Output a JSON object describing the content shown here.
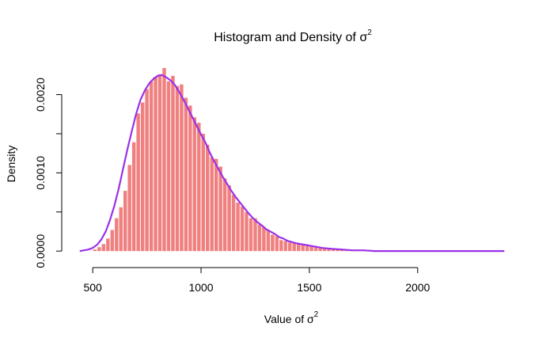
{
  "chart_data": {
    "type": "bar",
    "title": "Histogram and Density of σ",
    "title_superscript": "2",
    "xlabel": "Value of σ",
    "xlabel_superscript": "2",
    "ylabel": "Density",
    "xlim": [
      430,
      2410
    ],
    "ylim": [
      -0.00013,
      0.0024
    ],
    "x_ticks": [
      500,
      1000,
      1500,
      2000
    ],
    "x_tick_labels": [
      "500",
      "1000",
      "1500",
      "2000"
    ],
    "y_ticks": [
      0.0,
      0.0005,
      0.001,
      0.0015,
      0.002
    ],
    "y_tick_labels": [
      "0.0000",
      "",
      "0.0010",
      "",
      "0.0020"
    ],
    "bin_width": 20,
    "grid": false,
    "legend": "none",
    "colors": {
      "bars": "#F08080",
      "density": "#9B30E8"
    },
    "series": [
      {
        "kind": "histogram",
        "bins_start": [
          500,
          520,
          540,
          560,
          580,
          600,
          620,
          640,
          660,
          680,
          700,
          720,
          740,
          760,
          780,
          800,
          820,
          840,
          860,
          880,
          900,
          920,
          940,
          960,
          980,
          1000,
          1020,
          1040,
          1060,
          1080,
          1100,
          1120,
          1140,
          1160,
          1180,
          1200,
          1220,
          1240,
          1260,
          1280,
          1300,
          1320,
          1340,
          1360,
          1380,
          1400,
          1420,
          1440,
          1460,
          1480,
          1500,
          1520,
          1540,
          1560,
          1580,
          1600,
          1620,
          1640,
          1660,
          1680,
          1700,
          1720,
          1740,
          1760,
          1780,
          1800,
          1820,
          1840,
          1860,
          1880,
          1900
        ],
        "values": [
          2e-05,
          5e-05,
          9e-05,
          0.00016,
          0.00027,
          0.00042,
          0.00056,
          0.00077,
          0.0011,
          0.00139,
          0.00176,
          0.0019,
          0.00207,
          0.00217,
          0.00223,
          0.00226,
          0.00234,
          0.00217,
          0.00224,
          0.00211,
          0.00213,
          0.00196,
          0.00186,
          0.00171,
          0.00164,
          0.0015,
          0.00136,
          0.0012,
          0.00118,
          0.00108,
          0.00093,
          0.00084,
          0.00072,
          0.00062,
          0.00057,
          0.0005,
          0.00042,
          0.00042,
          0.00034,
          0.00031,
          0.00027,
          0.00021,
          0.00019,
          0.00014,
          0.00013,
          0.00011,
          0.0001,
          9e-05,
          8e-05,
          7e-05,
          6e-05,
          5e-05,
          4e-05,
          4e-05,
          3e-05,
          3e-05,
          2e-05,
          2e-05,
          2e-05,
          1e-05,
          1e-05,
          1e-05,
          1e-05,
          1e-05,
          1e-05,
          1e-05,
          1e-05,
          1e-05,
          1e-05,
          1e-05,
          1e-05
        ]
      },
      {
        "kind": "density",
        "x": [
          440,
          460,
          480,
          500,
          520,
          540,
          560,
          580,
          600,
          620,
          640,
          660,
          680,
          700,
          720,
          740,
          760,
          780,
          800,
          820,
          840,
          860,
          880,
          900,
          920,
          940,
          960,
          980,
          1000,
          1020,
          1040,
          1060,
          1080,
          1100,
          1120,
          1140,
          1160,
          1180,
          1200,
          1220,
          1240,
          1260,
          1280,
          1300,
          1320,
          1340,
          1360,
          1380,
          1400,
          1440,
          1480,
          1520,
          1560,
          1600,
          1650,
          1700,
          1750,
          1800,
          1900,
          2000,
          2100,
          2200,
          2300,
          2400
        ],
        "y": [
          0.0,
          1e-05,
          2e-05,
          4e-05,
          8e-05,
          0.00015,
          0.00025,
          0.0004,
          0.00058,
          0.0008,
          0.00105,
          0.0013,
          0.00153,
          0.00175,
          0.00193,
          0.00205,
          0.00214,
          0.0022,
          0.00224,
          0.00225,
          0.00222,
          0.00218,
          0.00212,
          0.00203,
          0.00193,
          0.00182,
          0.00171,
          0.0016,
          0.00149,
          0.00139,
          0.00126,
          0.00115,
          0.00105,
          0.00095,
          0.00086,
          0.00077,
          0.00069,
          0.00062,
          0.00055,
          0.00048,
          0.00042,
          0.00037,
          0.00033,
          0.00028,
          0.00025,
          0.00022,
          0.00018,
          0.00016,
          0.00013,
          0.0001,
          8e-05,
          6e-05,
          4e-05,
          3e-05,
          2e-05,
          1e-05,
          1e-05,
          0.0,
          0.0,
          0.0,
          0.0,
          0.0,
          0.0,
          0.0
        ]
      }
    ]
  }
}
